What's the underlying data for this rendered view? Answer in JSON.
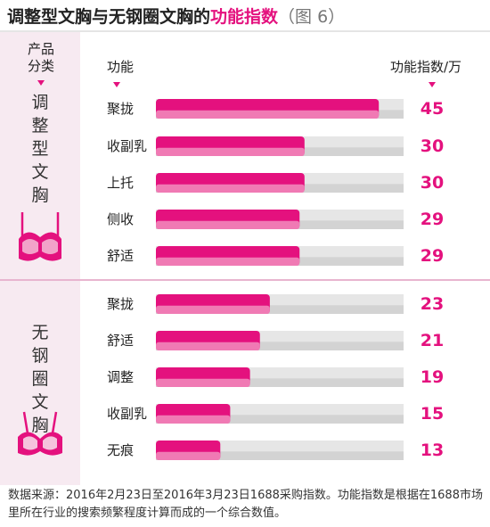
{
  "title": {
    "main": "调整型文胸与无钢圈文胸的",
    "highlight": "功能指数",
    "fig": "（图 6）"
  },
  "headers": {
    "category": "产品分类",
    "function": "功能",
    "value": "功能指数/万"
  },
  "groups": [
    {
      "label": "调整型文胸",
      "icon": "adjustable-bra-icon"
    },
    {
      "label": "无钢圈文胸",
      "icon": "wireless-bra-icon"
    }
  ],
  "colors": {
    "accent": "#e4117e",
    "bar_top": "#e4117e",
    "bar_bottom": "#f07ab4",
    "track": "#e6e6e6",
    "left_bg": "#f7eaf1"
  },
  "chart_data": {
    "type": "bar",
    "orientation": "horizontal",
    "xlim": [
      0,
      50
    ],
    "rows": [
      {
        "group": "调整型文胸",
        "category": "聚拢",
        "value": 45,
        "label": "45"
      },
      {
        "group": "调整型文胸",
        "category": "收副乳",
        "value": 30,
        "label": "30"
      },
      {
        "group": "调整型文胸",
        "category": "上托",
        "value": 30,
        "label": "30"
      },
      {
        "group": "调整型文胸",
        "category": "侧收",
        "value": 29,
        "label": "29"
      },
      {
        "group": "调整型文胸",
        "category": "舒适",
        "value": 29,
        "label": "29"
      },
      {
        "group": "无钢圈文胸",
        "category": "聚拢",
        "value": 23,
        "label": "23"
      },
      {
        "group": "无钢圈文胸",
        "category": "舒适",
        "value": 21,
        "label": "21"
      },
      {
        "group": "无钢圈文胸",
        "category": "调整",
        "value": 19,
        "label": "19"
      },
      {
        "group": "无钢圈文胸",
        "category": "收副乳",
        "value": 15,
        "label": "15"
      },
      {
        "group": "无钢圈文胸",
        "category": "无痕",
        "value": 13,
        "label": "13"
      }
    ]
  },
  "footer": {
    "text": "数据来源：2016年2月23日至2016年3月23日1688采购指数。功能指数是根据在1688市场里所在行业的搜索频繁程度计算而成的一个综合数值。"
  }
}
